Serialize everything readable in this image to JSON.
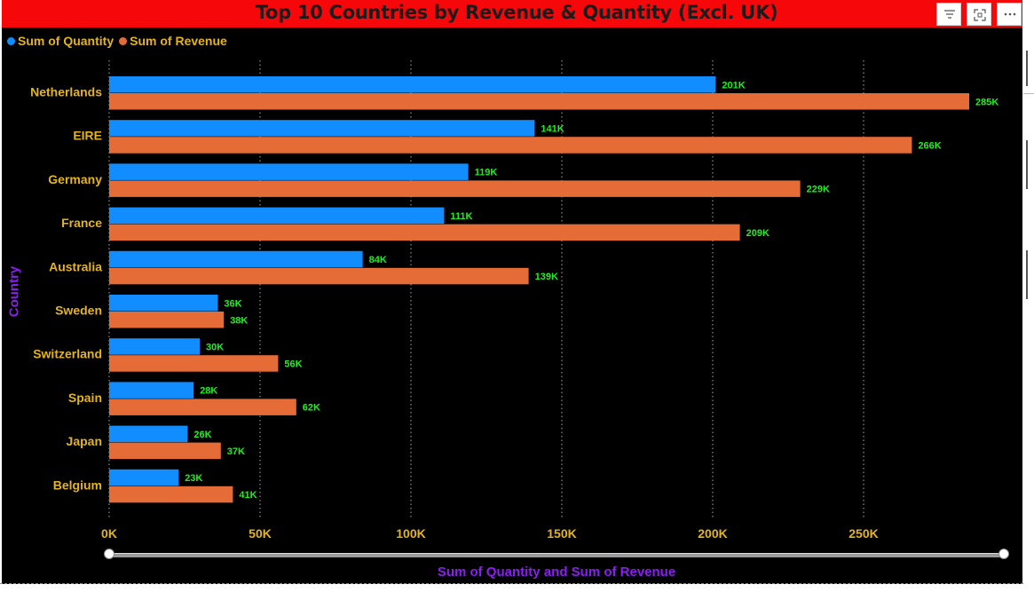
{
  "chart_data": {
    "type": "bar",
    "orientation": "horizontal",
    "title": "Top 10 Countries by Revenue & Quantity (Excl. UK)",
    "xlabel": "Sum of Quantity and Sum of Revenue",
    "ylabel": "Country",
    "categories": [
      "Netherlands",
      "EIRE",
      "Germany",
      "France",
      "Australia",
      "Sweden",
      "Switzerland",
      "Spain",
      "Japan",
      "Belgium"
    ],
    "series": [
      {
        "name": "Sum of Quantity",
        "color": "#118dff",
        "values": [
          201000,
          141000,
          119000,
          111000,
          84000,
          36000,
          30000,
          28000,
          26000,
          23000
        ],
        "labels": [
          "201K",
          "141K",
          "119K",
          "111K",
          "84K",
          "36K",
          "30K",
          "28K",
          "26K",
          "23K"
        ]
      },
      {
        "name": "Sum of Revenue",
        "color": "#e66c37",
        "values": [
          285000,
          266000,
          229000,
          209000,
          139000,
          38000,
          56000,
          62000,
          37000,
          41000
        ],
        "labels": [
          "285K",
          "266K",
          "229K",
          "209K",
          "139K",
          "38K",
          "56K",
          "62K",
          "37K",
          "41K"
        ]
      }
    ],
    "xlim": [
      0,
      290000
    ],
    "xticks": [
      0,
      50000,
      100000,
      150000,
      200000,
      250000
    ],
    "xtick_labels": [
      "0K",
      "50K",
      "100K",
      "150K",
      "200K",
      "250K"
    ],
    "grid": true,
    "legend_position": "top-left",
    "colors": {
      "background": "#000000",
      "title_bar": "#f5070a",
      "axis_text": "#e3b41b",
      "data_label": "#1ef01e",
      "axis_title": "#8b1ef0"
    }
  },
  "header": {
    "filter_icon": "filter-icon",
    "focus_icon": "focus-mode-icon",
    "more_icon": "more-options-icon"
  }
}
